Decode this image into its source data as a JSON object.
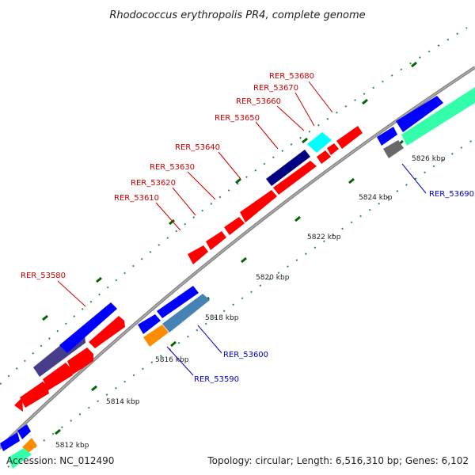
{
  "title": "Rhodococcus erythropolis PR4, complete genome",
  "footer": {
    "accession": "Accession: NC_012490",
    "stats": "Topology: circular; Length: 6,516,310 bp; Genes: 6,102"
  },
  "ticks": [
    "5812 kbp",
    "5814 kbp",
    "5816 kbp",
    "5818 kbp",
    "5820 kbp",
    "5822 kbp",
    "5824 kbp",
    "5826 kbp"
  ],
  "gene_labels": [
    "RER_53580",
    "RER_53590",
    "RER_53600",
    "RER_53610",
    "RER_53620",
    "RER_53630",
    "RER_53640",
    "RER_53650",
    "RER_53660",
    "RER_53670",
    "RER_53680",
    "RER_53690"
  ],
  "colors": {
    "red": "#ff0000",
    "blue": "#0000ff",
    "navy": "#000080",
    "cyan": "#00ffff",
    "slate": "#4682b4",
    "purple": "#483d8b",
    "orange": "#ff8c00",
    "mint": "#33ffaa",
    "gray": "#696969",
    "backbone": "#808080",
    "tick_major": "#006400",
    "tick_minor": "#2e8b57",
    "label_red": "#cc0000",
    "label_blue": "#0000cc"
  }
}
